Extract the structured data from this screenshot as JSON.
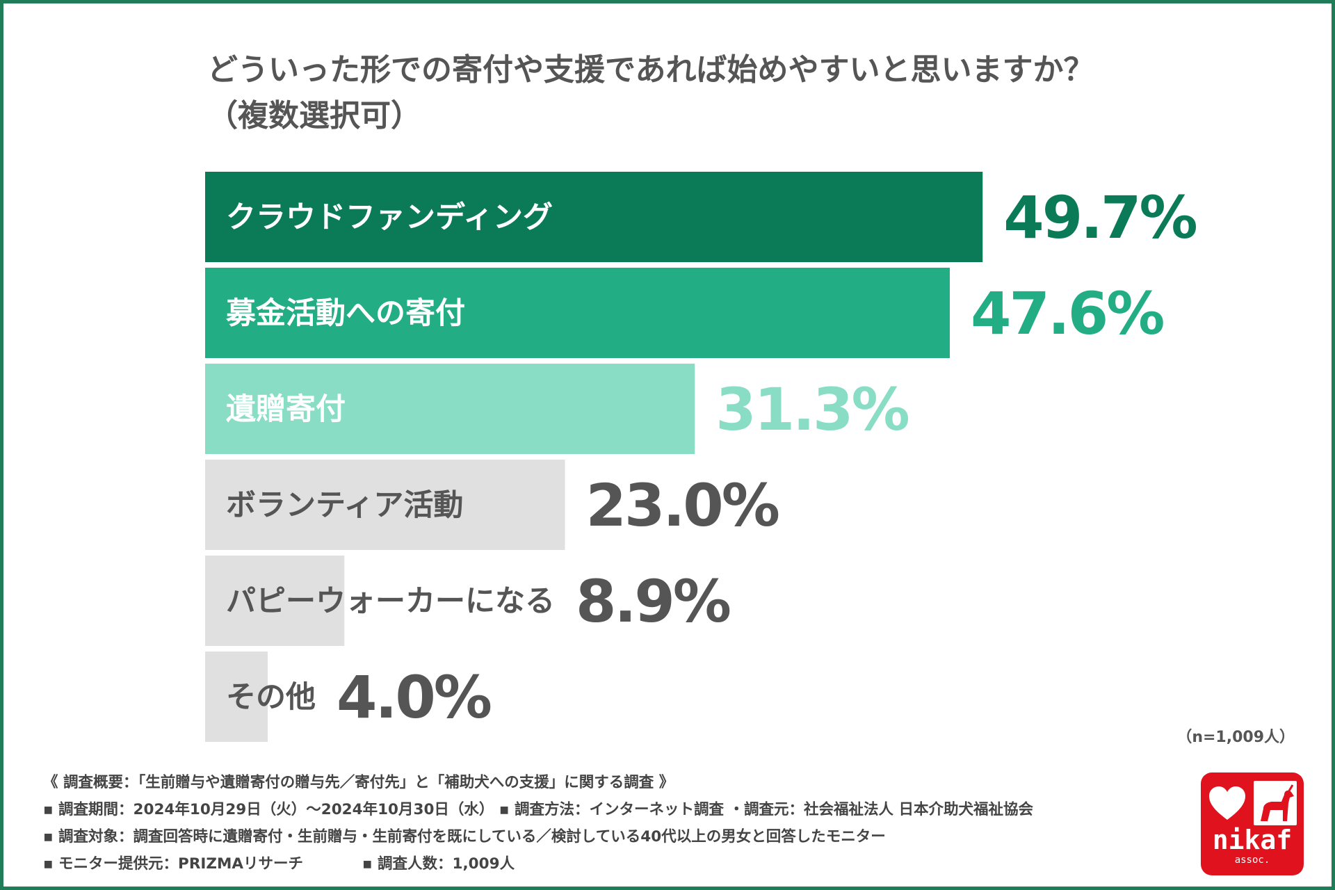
{
  "title": {
    "line1": "どういった形での寄付や支援であれば始めやすいと思いますか？",
    "line2": "（複数選択可）"
  },
  "chart_data": {
    "type": "bar",
    "orientation": "horizontal",
    "title": "どういった形での寄付や支援であれば始めやすいと思いますか？（複数選択可）",
    "categories": [
      "クラウドファンディング",
      "募金活動への寄付",
      "遺贈寄付",
      "ボランティア活動",
      "パピーウォーカーになる",
      "その他"
    ],
    "values": [
      49.7,
      47.6,
      31.3,
      23.0,
      8.9,
      4.0
    ],
    "value_labels": [
      "49.7%",
      "47.6%",
      "31.3%",
      "23.0%",
      "8.9%",
      "4.0%"
    ],
    "unit": "%",
    "bar_colors": [
      "#0a7a57",
      "#23ad85",
      "#88ddc4",
      "#e0e0e0",
      "#e0e0e0",
      "#e0e0e0"
    ],
    "label_colors": [
      "#ffffff",
      "#ffffff",
      "#ffffff",
      "#555555",
      "#555555",
      "#555555"
    ],
    "value_colors": [
      "#0a7a57",
      "#23ad85",
      "#88ddc4",
      "#555555",
      "#555555",
      "#555555"
    ],
    "grid": false,
    "legend": "none"
  },
  "n_note": "（n=1,009人）",
  "survey": {
    "overview": "《 調査概要：「生前贈与や遺贈寄付の贈与先／寄付先」と「補助犬への支援」に関する調査 》",
    "period": "▪ 調査期間：2024年10月29日（火）〜2024年10月30日（水）",
    "method": "▪ 調査方法：インターネット調査 ・調査元：社会福祉法人 日本介助犬福祉協会",
    "target": "▪ 調査対象：調査回答時に遺贈寄付・生前贈与・生前寄付を既にしている／検討している40代以上の男女と回答したモニター",
    "provider": "▪ モニター提供元：PRIZMAリサーチ",
    "count": "▪ 調査人数：1,009人"
  },
  "logo": {
    "text": "nikaf",
    "sub": "assoc.",
    "color": "#e0121e",
    "icons": [
      "heart-icon",
      "guide-dog-icon"
    ]
  },
  "colors": {
    "frame": "#1f7d5a",
    "text": "#555555"
  }
}
